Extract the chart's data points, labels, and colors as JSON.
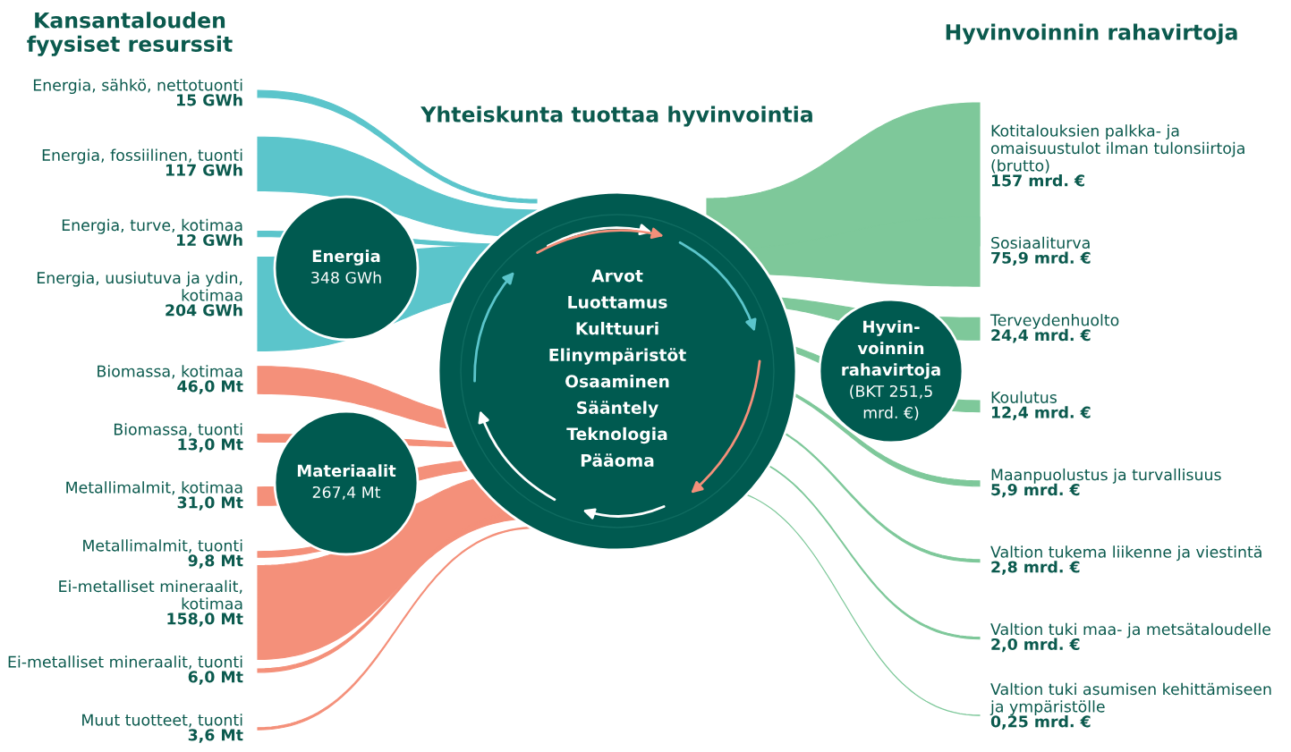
{
  "chart_data": {
    "type": "other",
    "title": "Yhteiskunta tuottaa hyvinvointia",
    "categories": [
      "Energia, sähkö, nettotuonti",
      "Energia, fossiilinen, tuonti",
      "Energia, turve, kotimaa",
      "Energia, uusiutuva ja ydin, kotimaa",
      "Biomassa, kotimaa",
      "Biomassa, tuonti",
      "Metallimalmit, kotimaa",
      "Metallimalmit, tuonti",
      "Ei-metalliset mineraalit, kotimaa",
      "Ei-metalliset mineraalit, tuonti",
      "Muut tuotteet, tuonti",
      "Kotitalouksien palkka- ja omaisuustulot ilman tulonsiirtoja (brutto)",
      "Sosiaaliturva",
      "Terveydenhuolto",
      "Koulutus",
      "Maanpuolustus ja turvallisuus",
      "Valtion tukema liikenne ja viestintä",
      "Valtion tuki maa- ja metsätaloudelle",
      "Valtion tuki asumisen kehittämiseen ja ympäristölle"
    ],
    "values": [
      15,
      117,
      12,
      204,
      46.0,
      13.0,
      31.0,
      9.8,
      158.0,
      6.0,
      3.6,
      157,
      75.9,
      24.4,
      12.4,
      5.9,
      2.8,
      2.0,
      0.25
    ],
    "colors": [
      "#5bc5cb",
      "#5bc5cb",
      "#5bc5cb",
      "#5bc5cb",
      "#f4907a",
      "#f4907a",
      "#f4907a",
      "#f4907a",
      "#f4907a",
      "#f4907a",
      "#f4907a",
      "#7ec89a",
      "#7ec89a",
      "#7ec89a",
      "#7ec89a",
      "#7ec89a",
      "#7ec89a",
      "#7ec89a",
      "#7ec89a"
    ],
    "value_labels": [
      "15 GWh",
      "117 GWh",
      "12 GWh",
      "204 GWh",
      "46,0 Mt",
      "13,0 Mt",
      "31,0 Mt",
      "9,8 Mt",
      "158,0 Mt",
      "6,0 Mt",
      "3,6 Mt",
      "157 mrd. €",
      "75,9 mrd. €",
      "24,4 mrd. €",
      "12,4 mrd. €",
      "5,9 mrd. €",
      "2,8 mrd. €",
      "2,0 mrd. €",
      "0,25 mrd. €"
    ],
    "annotations": [
      "Kansantalouden fyysiset resurssit",
      "Hyvinvoinnin rahavirtoja",
      "Energia",
      "348 GWh",
      "Materiaalit",
      "267,4 Mt",
      "Hyvin- voinnin rahavirtoja",
      "(BKT 251,5 mrd. €)",
      "Arvot",
      "Luottamus",
      "Kulttuuri",
      "Elinympäristöt",
      "Osaaminen",
      "Sääntely",
      "Teknologia",
      "Pääoma"
    ]
  }
}
